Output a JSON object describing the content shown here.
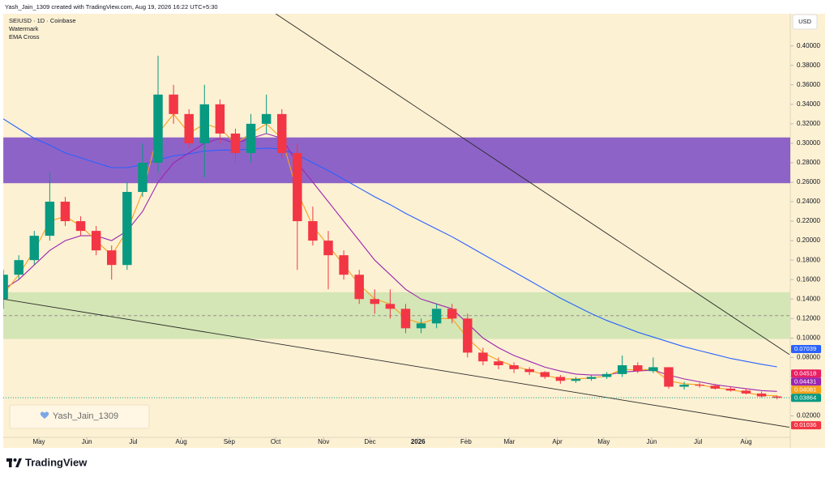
{
  "chart_data": {
    "type": "candlestick",
    "header": "Yash_Jain_1309 created with TradingView.com, Aug 19, 2026 16:22 UTC+5:30",
    "title": "SEIUSD · 1D · Coinbase",
    "indicators": [
      "Watermark",
      "EMA Cross"
    ],
    "currency": "USD",
    "watermark": "Yash_Jain_1309",
    "branding": "TradingView",
    "up_color": "#089981",
    "down_color": "#f23645",
    "x": [
      0,
      10,
      20,
      30,
      40,
      50,
      60,
      70,
      80,
      90,
      100,
      110,
      120,
      130,
      140,
      150,
      160,
      170,
      180,
      190,
      200,
      210,
      220,
      230,
      240,
      250,
      260,
      270,
      280,
      290,
      300,
      310,
      320,
      330,
      340,
      350,
      360,
      370,
      380,
      390,
      400,
      410,
      420,
      430,
      440,
      450,
      460,
      470,
      480,
      490,
      500
    ],
    "open": [
      0.14,
      0.165,
      0.18,
      0.205,
      0.24,
      0.22,
      0.21,
      0.19,
      0.175,
      0.25,
      0.28,
      0.35,
      0.33,
      0.3,
      0.34,
      0.31,
      0.29,
      0.32,
      0.33,
      0.29,
      0.22,
      0.2,
      0.185,
      0.165,
      0.14,
      0.135,
      0.13,
      0.11,
      0.115,
      0.13,
      0.12,
      0.085,
      0.076,
      0.072,
      0.068,
      0.065,
      0.06,
      0.056,
      0.058,
      0.06,
      0.063,
      0.072,
      0.066,
      0.07,
      0.05,
      0.052,
      0.051,
      0.048,
      0.046,
      0.043,
      0.04
    ],
    "high": [
      0.17,
      0.185,
      0.21,
      0.27,
      0.245,
      0.225,
      0.215,
      0.195,
      0.26,
      0.3,
      0.39,
      0.36,
      0.335,
      0.36,
      0.345,
      0.315,
      0.33,
      0.35,
      0.335,
      0.3,
      0.235,
      0.21,
      0.19,
      0.17,
      0.15,
      0.15,
      0.135,
      0.12,
      0.135,
      0.135,
      0.125,
      0.09,
      0.08,
      0.075,
      0.07,
      0.066,
      0.062,
      0.06,
      0.062,
      0.065,
      0.082,
      0.075,
      0.08,
      0.07,
      0.055,
      0.054,
      0.053,
      0.05,
      0.048,
      0.045,
      0.041
    ],
    "low": [
      0.13,
      0.16,
      0.175,
      0.2,
      0.215,
      0.205,
      0.185,
      0.16,
      0.17,
      0.245,
      0.27,
      0.32,
      0.295,
      0.265,
      0.3,
      0.28,
      0.28,
      0.31,
      0.285,
      0.17,
      0.195,
      0.15,
      0.16,
      0.135,
      0.125,
      0.12,
      0.105,
      0.105,
      0.11,
      0.115,
      0.08,
      0.072,
      0.068,
      0.064,
      0.062,
      0.058,
      0.053,
      0.054,
      0.056,
      0.058,
      0.06,
      0.064,
      0.064,
      0.048,
      0.047,
      0.049,
      0.047,
      0.045,
      0.042,
      0.039,
      0.037
    ],
    "close": [
      0.165,
      0.18,
      0.205,
      0.24,
      0.22,
      0.21,
      0.19,
      0.175,
      0.25,
      0.28,
      0.35,
      0.33,
      0.3,
      0.34,
      0.31,
      0.29,
      0.32,
      0.33,
      0.29,
      0.22,
      0.2,
      0.185,
      0.165,
      0.14,
      0.135,
      0.13,
      0.11,
      0.115,
      0.13,
      0.12,
      0.085,
      0.076,
      0.072,
      0.068,
      0.065,
      0.06,
      0.056,
      0.058,
      0.06,
      0.063,
      0.072,
      0.066,
      0.07,
      0.05,
      0.052,
      0.051,
      0.048,
      0.046,
      0.043,
      0.04,
      0.0386
    ],
    "series": [
      {
        "color": "#2962ff",
        "values": [
          0.325,
          0.315,
          0.305,
          0.298,
          0.29,
          0.285,
          0.28,
          0.275,
          0.275,
          0.278,
          0.283,
          0.287,
          0.289,
          0.292,
          0.293,
          0.293,
          0.294,
          0.295,
          0.294,
          0.288,
          0.28,
          0.272,
          0.263,
          0.254,
          0.245,
          0.237,
          0.228,
          0.22,
          0.212,
          0.204,
          0.195,
          0.186,
          0.177,
          0.168,
          0.159,
          0.15,
          0.141,
          0.133,
          0.125,
          0.118,
          0.112,
          0.106,
          0.101,
          0.096,
          0.091,
          0.087,
          0.083,
          0.079,
          0.076,
          0.073,
          0.0704
        ]
      },
      {
        "color": "#9c27b0",
        "values": [
          0.15,
          0.16,
          0.175,
          0.19,
          0.2,
          0.205,
          0.205,
          0.2,
          0.21,
          0.23,
          0.26,
          0.28,
          0.29,
          0.3,
          0.305,
          0.3,
          0.305,
          0.31,
          0.305,
          0.28,
          0.26,
          0.24,
          0.22,
          0.2,
          0.18,
          0.165,
          0.15,
          0.14,
          0.135,
          0.13,
          0.115,
          0.1,
          0.09,
          0.082,
          0.076,
          0.07,
          0.066,
          0.063,
          0.062,
          0.062,
          0.065,
          0.066,
          0.067,
          0.062,
          0.058,
          0.055,
          0.052,
          0.05,
          0.048,
          0.046,
          0.0452
        ]
      },
      {
        "color": "#f7a21b",
        "values": [
          0.145,
          0.165,
          0.19,
          0.22,
          0.225,
          0.215,
          0.2,
          0.185,
          0.21,
          0.25,
          0.31,
          0.33,
          0.31,
          0.32,
          0.315,
          0.3,
          0.31,
          0.32,
          0.305,
          0.25,
          0.215,
          0.195,
          0.175,
          0.155,
          0.14,
          0.135,
          0.12,
          0.115,
          0.12,
          0.12,
          0.1,
          0.085,
          0.077,
          0.071,
          0.067,
          0.062,
          0.058,
          0.058,
          0.059,
          0.061,
          0.068,
          0.067,
          0.068,
          0.056,
          0.053,
          0.052,
          0.049,
          0.047,
          0.044,
          0.041,
          0.0408
        ]
      }
    ],
    "zones": [
      {
        "from": 0.259,
        "to": 0.306,
        "color": "#8e63c7"
      },
      {
        "from": 0.099,
        "to": 0.147,
        "color": "#d4e6b5"
      }
    ],
    "level": 0.123,
    "trendlines": [
      {
        "x": [
          176,
          508
        ],
        "y": [
          0.433,
          0.083
        ]
      },
      {
        "x": [
          0,
          508
        ],
        "y": [
          0.14,
          0.0083
        ]
      }
    ],
    "price_labels": [
      {
        "value": 0.07039,
        "color": "#2962ff"
      },
      {
        "value": 0.04518,
        "color": "#e91e63"
      },
      {
        "value": 0.04431,
        "color": "#9c27b0"
      },
      {
        "value": 0.04081,
        "color": "#f7a21b"
      },
      {
        "value": 0.03864,
        "color": "#089981"
      },
      {
        "value": 0.01036,
        "color": "#f23645"
      }
    ],
    "xlim": [
      0,
      508
    ],
    "ylim": [
      -0.002,
      0.433
    ],
    "xticks": [
      {
        "value": 23,
        "label": "May"
      },
      {
        "value": 54,
        "label": "Jun"
      },
      {
        "value": 84,
        "label": "Jul"
      },
      {
        "value": 115,
        "label": "Aug"
      },
      {
        "value": 146,
        "label": "Sep"
      },
      {
        "value": 176,
        "label": "Oct"
      },
      {
        "value": 207,
        "label": "Nov"
      },
      {
        "value": 237,
        "label": "Dec"
      },
      {
        "value": 268,
        "label": "2026"
      },
      {
        "value": 299,
        "label": "Feb"
      },
      {
        "value": 327,
        "label": "Mar"
      },
      {
        "value": 358,
        "label": "Apr"
      },
      {
        "value": 388,
        "label": "May"
      },
      {
        "value": 419,
        "label": "Jun"
      },
      {
        "value": 449,
        "label": "Jul"
      },
      {
        "value": 480,
        "label": "Aug"
      }
    ],
    "yticks": [
      {
        "value": 0.02,
        "label": "0.02000"
      },
      {
        "value": 0.04,
        "label": "0.04000"
      },
      {
        "value": 0.06,
        "label": "0.06000"
      },
      {
        "value": 0.08,
        "label": "0.08000"
      },
      {
        "value": 0.1,
        "label": "0.10000"
      },
      {
        "value": 0.12,
        "label": "0.12000"
      },
      {
        "value": 0.14,
        "label": "0.14000"
      },
      {
        "value": 0.16,
        "label": "0.16000"
      },
      {
        "value": 0.18,
        "label": "0.18000"
      },
      {
        "value": 0.2,
        "label": "0.20000"
      },
      {
        "value": 0.22,
        "label": "0.22000"
      },
      {
        "value": 0.24,
        "label": "0.24000"
      },
      {
        "value": 0.26,
        "label": "0.26000"
      },
      {
        "value": 0.28,
        "label": "0.28000"
      },
      {
        "value": 0.3,
        "label": "0.30000"
      },
      {
        "value": 0.32,
        "label": "0.32000"
      },
      {
        "value": 0.34,
        "label": "0.34000"
      },
      {
        "value": 0.36,
        "label": "0.36000"
      },
      {
        "value": 0.38,
        "label": "0.38000"
      },
      {
        "value": 0.4,
        "label": "0.40000"
      }
    ],
    "grid": false
  }
}
